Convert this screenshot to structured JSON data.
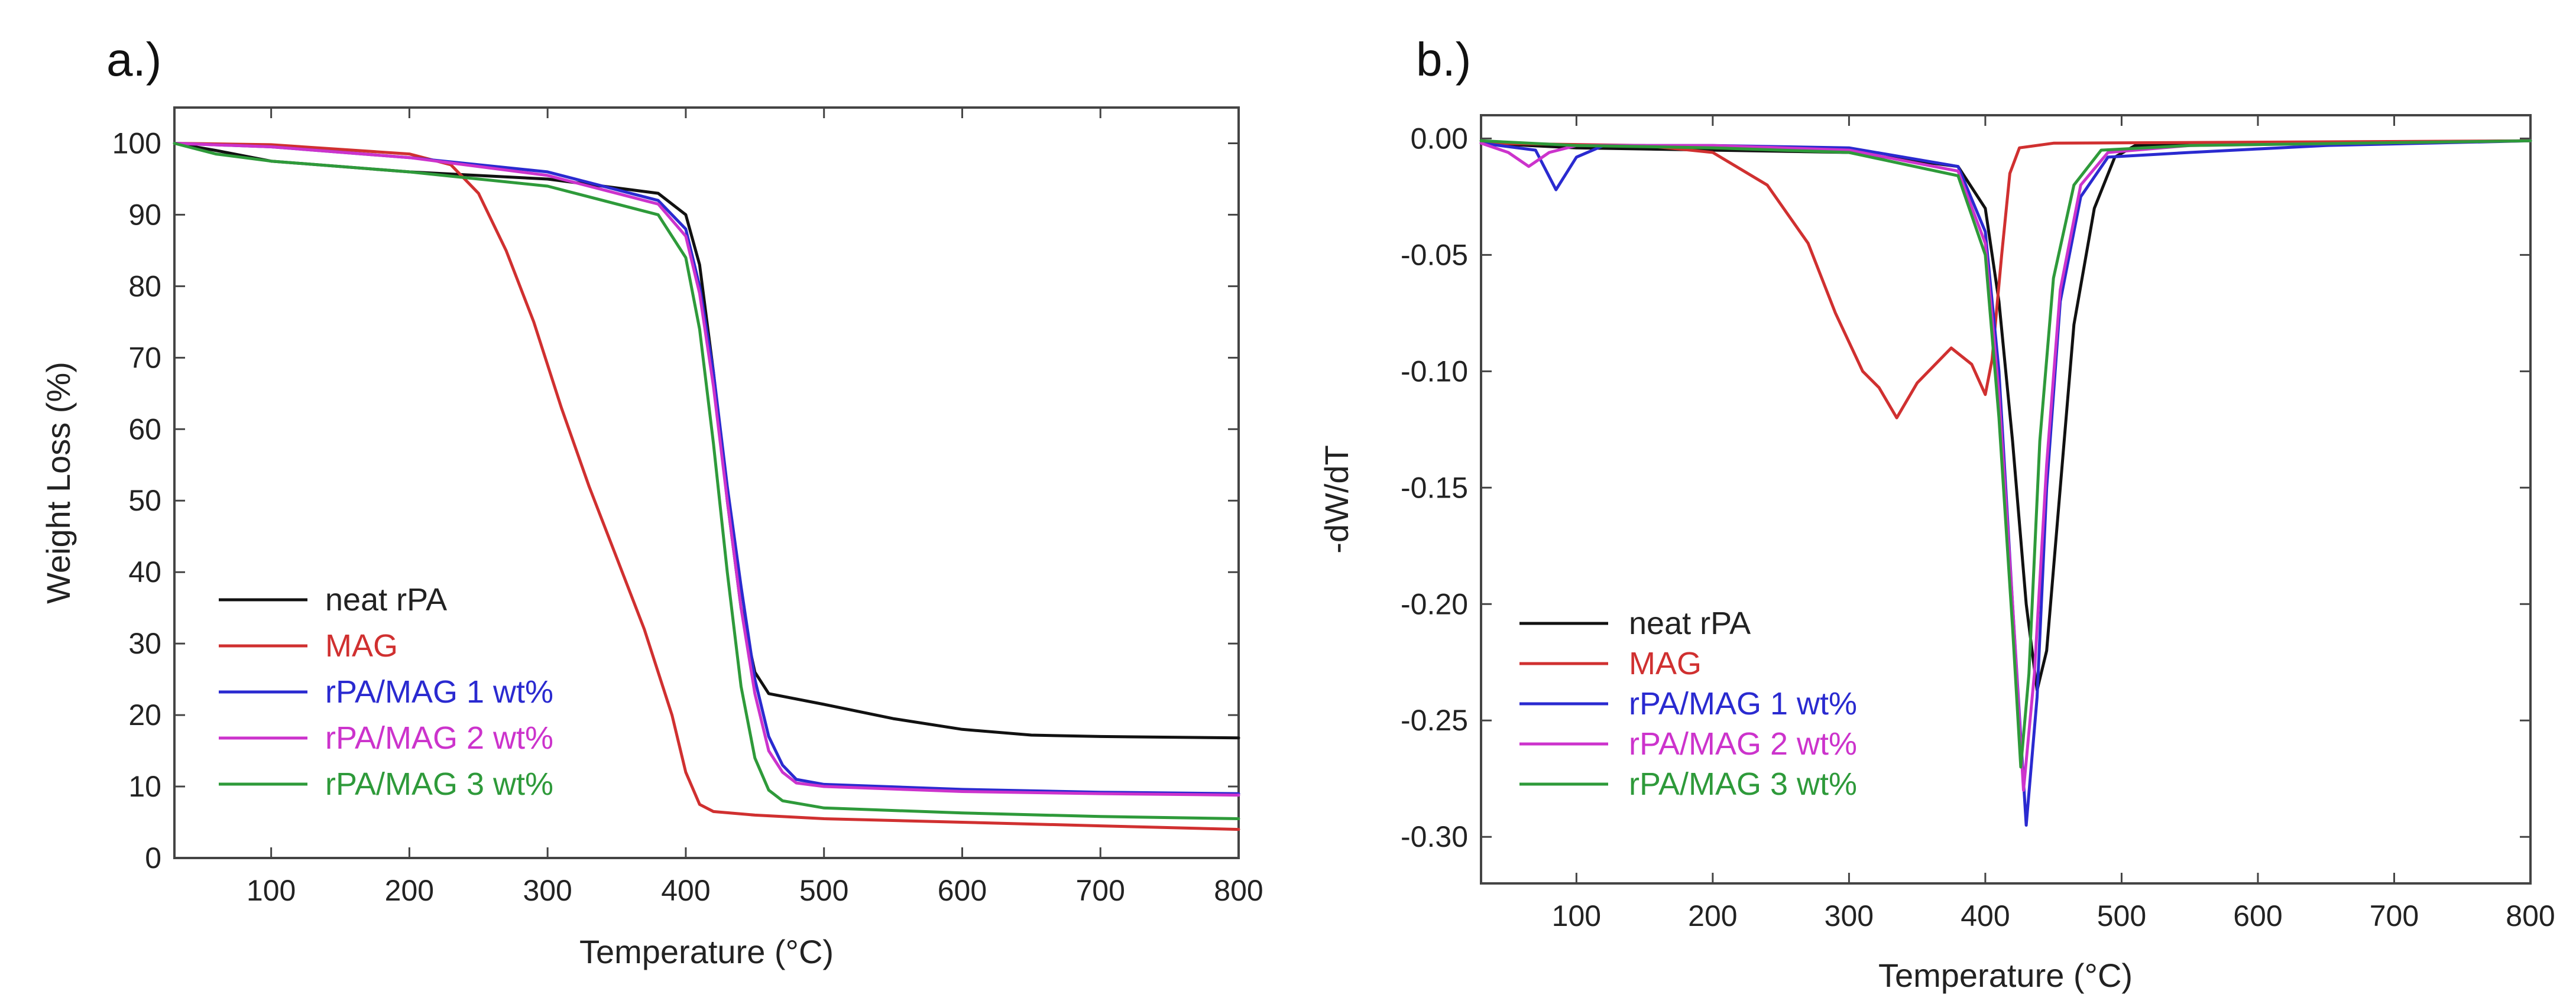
{
  "chart_data": [
    {
      "type": "line",
      "panel_label": "a.)",
      "xlabel": "Temperature (°C)",
      "ylabel": "Weight Loss (%)",
      "xlim": [
        30,
        800
      ],
      "ylim": [
        0,
        105
      ],
      "xticks": [
        100,
        200,
        300,
        400,
        500,
        600,
        700,
        800
      ],
      "yticks": [
        0,
        10,
        20,
        30,
        40,
        50,
        60,
        70,
        80,
        90,
        100
      ],
      "legend_position": "bottom-left",
      "series": [
        {
          "name": "neat rPA",
          "color": "#111111",
          "points": [
            [
              30,
              100
            ],
            [
              60,
              99
            ],
            [
              100,
              97.5
            ],
            [
              200,
              96
            ],
            [
              300,
              95
            ],
            [
              380,
              93
            ],
            [
              400,
              90
            ],
            [
              410,
              83
            ],
            [
              420,
              68
            ],
            [
              430,
              50
            ],
            [
              440,
              35
            ],
            [
              450,
              26
            ],
            [
              460,
              23
            ],
            [
              500,
              21.5
            ],
            [
              550,
              19.5
            ],
            [
              600,
              18
            ],
            [
              650,
              17.2
            ],
            [
              700,
              17
            ],
            [
              800,
              16.8
            ]
          ]
        },
        {
          "name": "MAG",
          "color": "#d03030",
          "points": [
            [
              30,
              100
            ],
            [
              100,
              99.8
            ],
            [
              200,
              98.5
            ],
            [
              230,
              97
            ],
            [
              250,
              93
            ],
            [
              270,
              85
            ],
            [
              290,
              75
            ],
            [
              310,
              63
            ],
            [
              330,
              52
            ],
            [
              350,
              42
            ],
            [
              370,
              32
            ],
            [
              390,
              20
            ],
            [
              400,
              12
            ],
            [
              410,
              7.5
            ],
            [
              420,
              6.5
            ],
            [
              450,
              6
            ],
            [
              500,
              5.5
            ],
            [
              600,
              5
            ],
            [
              700,
              4.5
            ],
            [
              800,
              4
            ]
          ]
        },
        {
          "name": "rPA/MAG 1 wt%",
          "color": "#2a2ad0",
          "points": [
            [
              30,
              100
            ],
            [
              100,
              99.5
            ],
            [
              200,
              98
            ],
            [
              300,
              96
            ],
            [
              380,
              92
            ],
            [
              400,
              88
            ],
            [
              410,
              80
            ],
            [
              420,
              68
            ],
            [
              430,
              52
            ],
            [
              440,
              38
            ],
            [
              450,
              25
            ],
            [
              460,
              17
            ],
            [
              470,
              13
            ],
            [
              480,
              11
            ],
            [
              500,
              10.3
            ],
            [
              600,
              9.6
            ],
            [
              700,
              9.2
            ],
            [
              800,
              9
            ]
          ]
        },
        {
          "name": "rPA/MAG 2 wt%",
          "color": "#cc33cc",
          "points": [
            [
              30,
              100
            ],
            [
              100,
              99.5
            ],
            [
              200,
              98
            ],
            [
              300,
              95.5
            ],
            [
              380,
              91.5
            ],
            [
              400,
              87
            ],
            [
              410,
              79
            ],
            [
              420,
              66
            ],
            [
              430,
              50
            ],
            [
              440,
              35
            ],
            [
              450,
              23
            ],
            [
              460,
              15
            ],
            [
              470,
              12
            ],
            [
              480,
              10.5
            ],
            [
              500,
              10
            ],
            [
              600,
              9.3
            ],
            [
              700,
              9
            ],
            [
              800,
              8.8
            ]
          ]
        },
        {
          "name": "rPA/MAG 3 wt%",
          "color": "#2e9a3a",
          "points": [
            [
              30,
              100
            ],
            [
              60,
              98.5
            ],
            [
              100,
              97.5
            ],
            [
              200,
              96
            ],
            [
              300,
              94
            ],
            [
              380,
              90
            ],
            [
              400,
              84
            ],
            [
              410,
              74
            ],
            [
              420,
              58
            ],
            [
              430,
              40
            ],
            [
              440,
              24
            ],
            [
              450,
              14
            ],
            [
              460,
              9.5
            ],
            [
              470,
              8
            ],
            [
              500,
              7
            ],
            [
              600,
              6.3
            ],
            [
              700,
              5.8
            ],
            [
              800,
              5.5
            ]
          ]
        }
      ]
    },
    {
      "type": "line",
      "panel_label": "b.)",
      "xlabel": "Temperature (°C)",
      "ylabel": "-dW/dT",
      "xlim": [
        30,
        800
      ],
      "ylim": [
        -0.32,
        0.01
      ],
      "xticks": [
        100,
        200,
        300,
        400,
        500,
        600,
        700,
        800
      ],
      "yticks": [
        0.0,
        -0.05,
        -0.1,
        -0.15,
        -0.2,
        -0.25,
        -0.3
      ],
      "ytick_labels": [
        "0.00",
        "-0.05",
        "-0.10",
        "-0.15",
        "-0.20",
        "-0.25",
        "-0.30"
      ],
      "legend_position": "bottom-left",
      "series": [
        {
          "name": "neat rPA",
          "color": "#111111",
          "points": [
            [
              30,
              -0.002
            ],
            [
              100,
              -0.004
            ],
            [
              200,
              -0.005
            ],
            [
              300,
              -0.006
            ],
            [
              380,
              -0.012
            ],
            [
              400,
              -0.03
            ],
            [
              410,
              -0.07
            ],
            [
              420,
              -0.13
            ],
            [
              430,
              -0.2
            ],
            [
              438,
              -0.237
            ],
            [
              445,
              -0.22
            ],
            [
              455,
              -0.15
            ],
            [
              465,
              -0.08
            ],
            [
              480,
              -0.03
            ],
            [
              495,
              -0.008
            ],
            [
              510,
              -0.003
            ],
            [
              600,
              -0.002
            ],
            [
              800,
              -0.001
            ]
          ]
        },
        {
          "name": "MAG",
          "color": "#d03030",
          "points": [
            [
              30,
              -0.002
            ],
            [
              150,
              -0.003
            ],
            [
              200,
              -0.006
            ],
            [
              240,
              -0.02
            ],
            [
              270,
              -0.045
            ],
            [
              290,
              -0.075
            ],
            [
              310,
              -0.1
            ],
            [
              322,
              -0.107
            ],
            [
              335,
              -0.12
            ],
            [
              350,
              -0.105
            ],
            [
              375,
              -0.09
            ],
            [
              390,
              -0.097
            ],
            [
              400,
              -0.11
            ],
            [
              405,
              -0.095
            ],
            [
              412,
              -0.05
            ],
            [
              418,
              -0.015
            ],
            [
              425,
              -0.004
            ],
            [
              450,
              -0.002
            ],
            [
              800,
              -0.001
            ]
          ]
        },
        {
          "name": "rPA/MAG 1 wt%",
          "color": "#2a2ad0",
          "points": [
            [
              30,
              -0.002
            ],
            [
              70,
              -0.005
            ],
            [
              85,
              -0.022
            ],
            [
              100,
              -0.008
            ],
            [
              120,
              -0.003
            ],
            [
              200,
              -0.003
            ],
            [
              300,
              -0.004
            ],
            [
              380,
              -0.012
            ],
            [
              400,
              -0.04
            ],
            [
              410,
              -0.1
            ],
            [
              420,
              -0.2
            ],
            [
              430,
              -0.295
            ],
            [
              438,
              -0.24
            ],
            [
              445,
              -0.15
            ],
            [
              455,
              -0.07
            ],
            [
              470,
              -0.025
            ],
            [
              490,
              -0.008
            ],
            [
              550,
              -0.006
            ],
            [
              650,
              -0.003
            ],
            [
              800,
              -0.001
            ]
          ]
        },
        {
          "name": "rPA/MAG 2 wt%",
          "color": "#cc33cc",
          "points": [
            [
              30,
              -0.002
            ],
            [
              50,
              -0.006
            ],
            [
              65,
              -0.012
            ],
            [
              80,
              -0.006
            ],
            [
              100,
              -0.003
            ],
            [
              200,
              -0.003
            ],
            [
              300,
              -0.005
            ],
            [
              380,
              -0.014
            ],
            [
              400,
              -0.045
            ],
            [
              410,
              -0.11
            ],
            [
              420,
              -0.2
            ],
            [
              428,
              -0.28
            ],
            [
              436,
              -0.23
            ],
            [
              445,
              -0.14
            ],
            [
              455,
              -0.065
            ],
            [
              470,
              -0.02
            ],
            [
              490,
              -0.006
            ],
            [
              550,
              -0.003
            ],
            [
              800,
              -0.001
            ]
          ]
        },
        {
          "name": "rPA/MAG 3 wt%",
          "color": "#2e9a3a",
          "points": [
            [
              30,
              -0.001
            ],
            [
              100,
              -0.003
            ],
            [
              200,
              -0.004
            ],
            [
              300,
              -0.006
            ],
            [
              380,
              -0.016
            ],
            [
              400,
              -0.05
            ],
            [
              410,
              -0.12
            ],
            [
              420,
              -0.21
            ],
            [
              426,
              -0.27
            ],
            [
              432,
              -0.23
            ],
            [
              440,
              -0.13
            ],
            [
              450,
              -0.06
            ],
            [
              465,
              -0.02
            ],
            [
              485,
              -0.005
            ],
            [
              550,
              -0.003
            ],
            [
              800,
              -0.001
            ]
          ]
        }
      ]
    }
  ]
}
